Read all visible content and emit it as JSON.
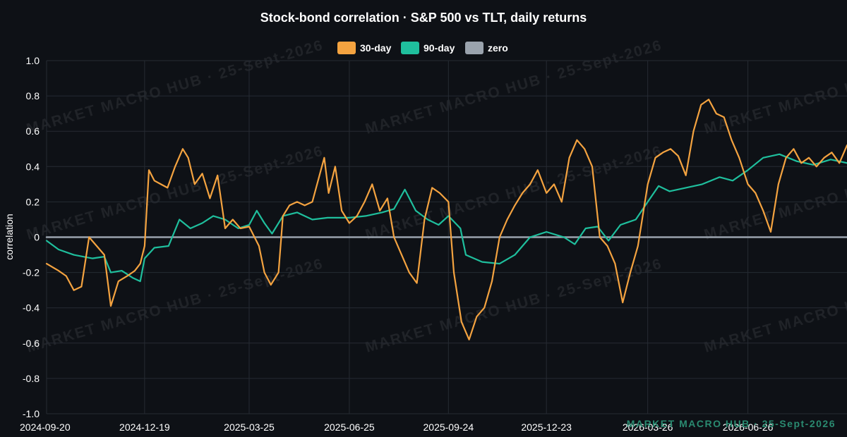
{
  "chart_data": {
    "type": "line",
    "title": "Stock-bond correlation · S&P 500 vs TLT, daily returns",
    "xlabel": "",
    "ylabel": "correlation",
    "ylim": [
      -1.0,
      1.0
    ],
    "yticks": [
      "1.0",
      "0.8",
      "0.6",
      "0.4",
      "0.2",
      "0",
      "-0.2",
      "-0.4",
      "-0.6",
      "-0.8",
      "-1.0"
    ],
    "x_range": [
      "2024-09-20",
      "2026-09-25"
    ],
    "xticks": [
      "2024-09-20",
      "2024-12-19",
      "2025-03-25",
      "2025-06-25",
      "2025-09-24",
      "2025-12-23",
      "2026-03-26",
      "2026-06-26"
    ],
    "grid": true,
    "legend_position": "top-center",
    "series": [
      {
        "name": "30-day",
        "color": "#f4a340",
        "points": [
          [
            "2024-09-20",
            -0.15
          ],
          [
            "2024-10-01",
            -0.19
          ],
          [
            "2024-10-08",
            -0.22
          ],
          [
            "2024-10-15",
            -0.3
          ],
          [
            "2024-10-22",
            -0.28
          ],
          [
            "2024-10-29",
            0.0
          ],
          [
            "2024-11-05",
            -0.05
          ],
          [
            "2024-11-12",
            -0.1
          ],
          [
            "2024-11-18",
            -0.39
          ],
          [
            "2024-11-25",
            -0.25
          ],
          [
            "2024-12-03",
            -0.22
          ],
          [
            "2024-12-10",
            -0.19
          ],
          [
            "2024-12-15",
            -0.15
          ],
          [
            "2024-12-19",
            -0.05
          ],
          [
            "2024-12-23",
            0.38
          ],
          [
            "2024-12-28",
            0.32
          ],
          [
            "2025-01-03",
            0.3
          ],
          [
            "2025-01-09",
            0.28
          ],
          [
            "2025-01-16",
            0.4
          ],
          [
            "2025-01-23",
            0.5
          ],
          [
            "2025-01-28",
            0.45
          ],
          [
            "2025-02-03",
            0.3
          ],
          [
            "2025-02-10",
            0.36
          ],
          [
            "2025-02-17",
            0.22
          ],
          [
            "2025-02-24",
            0.35
          ],
          [
            "2025-03-03",
            0.05
          ],
          [
            "2025-03-10",
            0.1
          ],
          [
            "2025-03-17",
            0.05
          ],
          [
            "2025-03-25",
            0.06
          ],
          [
            "2025-04-03",
            -0.05
          ],
          [
            "2025-04-08",
            -0.2
          ],
          [
            "2025-04-14",
            -0.27
          ],
          [
            "2025-04-21",
            -0.2
          ],
          [
            "2025-04-25",
            0.12
          ],
          [
            "2025-05-01",
            0.18
          ],
          [
            "2025-05-08",
            0.2
          ],
          [
            "2025-05-15",
            0.18
          ],
          [
            "2025-05-22",
            0.2
          ],
          [
            "2025-05-29",
            0.36
          ],
          [
            "2025-06-02",
            0.45
          ],
          [
            "2025-06-06",
            0.25
          ],
          [
            "2025-06-12",
            0.4
          ],
          [
            "2025-06-18",
            0.15
          ],
          [
            "2025-06-25",
            0.08
          ],
          [
            "2025-07-02",
            0.12
          ],
          [
            "2025-07-09",
            0.2
          ],
          [
            "2025-07-16",
            0.3
          ],
          [
            "2025-07-23",
            0.15
          ],
          [
            "2025-07-30",
            0.22
          ],
          [
            "2025-08-05",
            0.0
          ],
          [
            "2025-08-12",
            -0.1
          ],
          [
            "2025-08-19",
            -0.2
          ],
          [
            "2025-08-26",
            -0.26
          ],
          [
            "2025-09-02",
            0.1
          ],
          [
            "2025-09-09",
            0.28
          ],
          [
            "2025-09-16",
            0.25
          ],
          [
            "2025-09-24",
            0.2
          ],
          [
            "2025-09-29",
            -0.2
          ],
          [
            "2025-10-06",
            -0.48
          ],
          [
            "2025-10-13",
            -0.58
          ],
          [
            "2025-10-20",
            -0.45
          ],
          [
            "2025-10-27",
            -0.4
          ],
          [
            "2025-11-03",
            -0.25
          ],
          [
            "2025-11-10",
            0.0
          ],
          [
            "2025-11-17",
            0.1
          ],
          [
            "2025-11-24",
            0.18
          ],
          [
            "2025-12-01",
            0.25
          ],
          [
            "2025-12-08",
            0.3
          ],
          [
            "2025-12-15",
            0.38
          ],
          [
            "2025-12-23",
            0.25
          ],
          [
            "2025-12-30",
            0.3
          ],
          [
            "2026-01-06",
            0.2
          ],
          [
            "2026-01-13",
            0.45
          ],
          [
            "2026-01-20",
            0.55
          ],
          [
            "2026-01-27",
            0.5
          ],
          [
            "2026-02-03",
            0.4
          ],
          [
            "2026-02-10",
            0.0
          ],
          [
            "2026-02-17",
            -0.05
          ],
          [
            "2026-02-24",
            -0.15
          ],
          [
            "2026-03-03",
            -0.37
          ],
          [
            "2026-03-10",
            -0.2
          ],
          [
            "2026-03-17",
            -0.05
          ],
          [
            "2026-03-26",
            0.3
          ],
          [
            "2026-04-02",
            0.45
          ],
          [
            "2026-04-09",
            0.48
          ],
          [
            "2026-04-16",
            0.5
          ],
          [
            "2026-04-23",
            0.46
          ],
          [
            "2026-04-30",
            0.35
          ],
          [
            "2026-05-07",
            0.6
          ],
          [
            "2026-05-14",
            0.75
          ],
          [
            "2026-05-21",
            0.78
          ],
          [
            "2026-05-28",
            0.7
          ],
          [
            "2026-06-04",
            0.68
          ],
          [
            "2026-06-11",
            0.55
          ],
          [
            "2026-06-18",
            0.45
          ],
          [
            "2026-06-26",
            0.3
          ],
          [
            "2026-07-03",
            0.25
          ],
          [
            "2026-07-10",
            0.15
          ],
          [
            "2026-07-17",
            0.03
          ],
          [
            "2026-07-24",
            0.3
          ],
          [
            "2026-07-31",
            0.45
          ],
          [
            "2026-08-07",
            0.5
          ],
          [
            "2026-08-14",
            0.42
          ],
          [
            "2026-08-21",
            0.45
          ],
          [
            "2026-08-28",
            0.4
          ],
          [
            "2026-09-04",
            0.45
          ],
          [
            "2026-09-11",
            0.48
          ],
          [
            "2026-09-18",
            0.42
          ],
          [
            "2026-09-25",
            0.52
          ]
        ]
      },
      {
        "name": "90-day",
        "color": "#1fbf9d",
        "points": [
          [
            "2024-09-20",
            -0.02
          ],
          [
            "2024-10-01",
            -0.07
          ],
          [
            "2024-10-15",
            -0.1
          ],
          [
            "2024-11-01",
            -0.12
          ],
          [
            "2024-11-12",
            -0.11
          ],
          [
            "2024-11-18",
            -0.2
          ],
          [
            "2024-11-28",
            -0.19
          ],
          [
            "2024-12-08",
            -0.23
          ],
          [
            "2024-12-15",
            -0.25
          ],
          [
            "2024-12-19",
            -0.12
          ],
          [
            "2024-12-28",
            -0.06
          ],
          [
            "2025-01-10",
            -0.05
          ],
          [
            "2025-01-20",
            0.1
          ],
          [
            "2025-01-30",
            0.05
          ],
          [
            "2025-02-10",
            0.08
          ],
          [
            "2025-02-20",
            0.12
          ],
          [
            "2025-03-03",
            0.1
          ],
          [
            "2025-03-15",
            0.05
          ],
          [
            "2025-03-25",
            0.07
          ],
          [
            "2025-04-01",
            0.15
          ],
          [
            "2025-04-08",
            0.08
          ],
          [
            "2025-04-15",
            0.02
          ],
          [
            "2025-04-25",
            0.12
          ],
          [
            "2025-05-08",
            0.14
          ],
          [
            "2025-05-22",
            0.1
          ],
          [
            "2025-06-05",
            0.11
          ],
          [
            "2025-06-20",
            0.11
          ],
          [
            "2025-06-25",
            0.11
          ],
          [
            "2025-07-10",
            0.12
          ],
          [
            "2025-07-25",
            0.14
          ],
          [
            "2025-08-05",
            0.16
          ],
          [
            "2025-08-15",
            0.27
          ],
          [
            "2025-08-25",
            0.15
          ],
          [
            "2025-09-05",
            0.1
          ],
          [
            "2025-09-15",
            0.07
          ],
          [
            "2025-09-24",
            0.12
          ],
          [
            "2025-10-05",
            0.05
          ],
          [
            "2025-10-10",
            -0.1
          ],
          [
            "2025-10-25",
            -0.14
          ],
          [
            "2025-11-10",
            -0.15
          ],
          [
            "2025-11-24",
            -0.1
          ],
          [
            "2025-12-08",
            0.0
          ],
          [
            "2025-12-23",
            0.03
          ],
          [
            "2026-01-08",
            0.0
          ],
          [
            "2026-01-18",
            -0.04
          ],
          [
            "2026-01-28",
            0.05
          ],
          [
            "2026-02-08",
            0.06
          ],
          [
            "2026-02-18",
            -0.02
          ],
          [
            "2026-03-01",
            0.07
          ],
          [
            "2026-03-15",
            0.1
          ],
          [
            "2026-03-26",
            0.2
          ],
          [
            "2026-04-05",
            0.29
          ],
          [
            "2026-04-15",
            0.26
          ],
          [
            "2026-04-30",
            0.28
          ],
          [
            "2026-05-15",
            0.3
          ],
          [
            "2026-05-31",
            0.34
          ],
          [
            "2026-06-12",
            0.32
          ],
          [
            "2026-06-26",
            0.38
          ],
          [
            "2026-07-10",
            0.45
          ],
          [
            "2026-07-25",
            0.47
          ],
          [
            "2026-08-10",
            0.43
          ],
          [
            "2026-08-25",
            0.41
          ],
          [
            "2026-09-10",
            0.44
          ],
          [
            "2026-09-25",
            0.42
          ]
        ]
      },
      {
        "name": "zero",
        "color": "#9aa3ad",
        "points": [
          [
            "2024-09-20",
            0
          ],
          [
            "2026-09-25",
            0
          ]
        ]
      }
    ]
  },
  "watermark": {
    "text": "MARKET MACRO HUB · 25-Sept-2026",
    "corner_text": "MARKET MACRO HUB · 25-Sept-2026",
    "color": "#2a8a70"
  },
  "background_color": "#0e1116",
  "grid_color": "#262b33"
}
